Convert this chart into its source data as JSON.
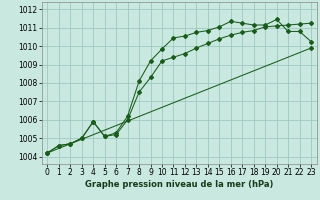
{
  "xlabel": "Graphe pression niveau de la mer (hPa)",
  "background_color": "#c8e8e0",
  "grid_color": "#a0c8c0",
  "line_color": "#1a5c1a",
  "xlim": [
    -0.5,
    23.5
  ],
  "ylim": [
    1003.6,
    1012.4
  ],
  "xticks": [
    0,
    1,
    2,
    3,
    4,
    5,
    6,
    7,
    8,
    9,
    10,
    11,
    12,
    13,
    14,
    15,
    16,
    17,
    18,
    19,
    20,
    21,
    22,
    23
  ],
  "yticks": [
    1004,
    1005,
    1006,
    1007,
    1008,
    1009,
    1010,
    1011,
    1012
  ],
  "line1_x": [
    0,
    1,
    2,
    3,
    4,
    5,
    6,
    7,
    8,
    9,
    10,
    11,
    12,
    13,
    14,
    15,
    16,
    17,
    18,
    19,
    20,
    21,
    22,
    23
  ],
  "line1_y": [
    1004.2,
    1004.6,
    1004.7,
    1005.0,
    1005.9,
    1005.1,
    1005.3,
    1006.2,
    1008.1,
    1009.2,
    1009.85,
    1010.45,
    1010.55,
    1010.75,
    1010.85,
    1011.05,
    1011.35,
    1011.25,
    1011.15,
    1011.15,
    1011.45,
    1010.8,
    1010.8,
    1010.25
  ],
  "line2_x": [
    0,
    1,
    2,
    3,
    4,
    5,
    6,
    7,
    8,
    9,
    10,
    11,
    12,
    13,
    14,
    15,
    16,
    17,
    18,
    19,
    20,
    21,
    22,
    23
  ],
  "line2_y": [
    1004.2,
    1004.6,
    1004.7,
    1005.0,
    1005.9,
    1005.1,
    1005.2,
    1006.0,
    1007.5,
    1008.3,
    1009.2,
    1009.4,
    1009.6,
    1009.9,
    1010.15,
    1010.4,
    1010.6,
    1010.75,
    1010.85,
    1011.05,
    1011.1,
    1011.15,
    1011.2,
    1011.25
  ],
  "line3_x": [
    0,
    23
  ],
  "line3_y": [
    1004.2,
    1009.9
  ],
  "tick_fontsize": 5.5,
  "xlabel_fontsize": 6.0,
  "xlabel_fontweight": "bold",
  "xlabel_color": "#1a3a1a"
}
